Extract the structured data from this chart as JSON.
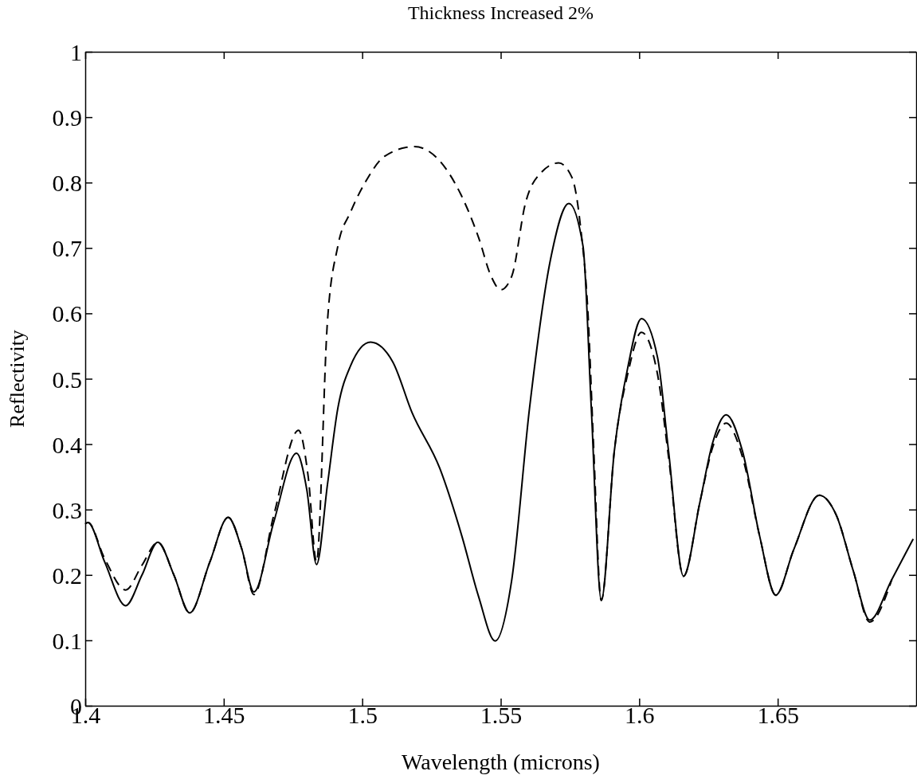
{
  "chart_data": {
    "type": "line",
    "title": "Thickness Increased 2%",
    "xlabel": "Wavelength (microns)",
    "ylabel": "Reflectivity",
    "xlim": [
      1.4,
      1.7
    ],
    "xticks": [
      1.4,
      1.45,
      1.5,
      1.55,
      1.6,
      1.65
    ],
    "ylim": [
      0,
      1
    ],
    "yticks": [
      0,
      0.1,
      0.2,
      0.3,
      0.4,
      0.5,
      0.6,
      0.7,
      0.8,
      0.9,
      1
    ],
    "marker": "none",
    "series": [
      {
        "color": "#000000",
        "line_style": "solid",
        "x": [
          1.4,
          1.401,
          1.407,
          1.4146,
          1.4205,
          1.4262,
          1.432,
          1.4377,
          1.445,
          1.4516,
          1.4565,
          1.4609,
          1.468,
          1.4763,
          1.48,
          1.4835,
          1.4875,
          1.4912,
          1.4958,
          1.503,
          1.511,
          1.518,
          1.528,
          1.536,
          1.542,
          1.548,
          1.554,
          1.5604,
          1.568,
          1.5746,
          1.5797,
          1.5827,
          1.5863,
          1.591,
          1.596,
          1.6008,
          1.6066,
          1.6106,
          1.616,
          1.6219,
          1.6265,
          1.6314,
          1.6373,
          1.6435,
          1.6493,
          1.6558,
          1.665,
          1.6712,
          1.6773,
          1.6832,
          1.6912,
          1.6989
        ],
        "values": [
          0.278,
          0.28,
          0.22,
          0.153,
          0.2,
          0.25,
          0.2,
          0.142,
          0.22,
          0.288,
          0.24,
          0.174,
          0.28,
          0.386,
          0.33,
          0.216,
          0.34,
          0.455,
          0.52,
          0.556,
          0.526,
          0.448,
          0.363,
          0.259,
          0.167,
          0.099,
          0.193,
          0.455,
          0.683,
          0.768,
          0.703,
          0.455,
          0.161,
          0.389,
          0.52,
          0.592,
          0.533,
          0.389,
          0.198,
          0.311,
          0.402,
          0.445,
          0.389,
          0.259,
          0.169,
          0.239,
          0.322,
          0.291,
          0.206,
          0.131,
          0.193,
          0.255
        ]
      },
      {
        "color": "#000000",
        "line_style": "dashed",
        "x": [
          1.4,
          1.401,
          1.407,
          1.4146,
          1.4205,
          1.4262,
          1.432,
          1.4377,
          1.445,
          1.4516,
          1.4565,
          1.4609,
          1.468,
          1.477,
          1.4805,
          1.4835,
          1.4874,
          1.4912,
          1.4958,
          1.502,
          1.508,
          1.5188,
          1.528,
          1.5357,
          1.542,
          1.5465,
          1.55,
          1.554,
          1.5589,
          1.565,
          1.5709,
          1.5758,
          1.5789,
          1.5815,
          1.5835,
          1.5863,
          1.591,
          1.596,
          1.6008,
          1.6066,
          1.6106,
          1.616,
          1.6219,
          1.6265,
          1.6314,
          1.6373,
          1.6435,
          1.6493,
          1.6558,
          1.665,
          1.6712,
          1.6773,
          1.6832,
          1.6912
        ],
        "values": [
          0.278,
          0.28,
          0.225,
          0.177,
          0.215,
          0.25,
          0.2,
          0.142,
          0.22,
          0.288,
          0.24,
          0.17,
          0.29,
          0.421,
          0.35,
          0.22,
          0.585,
          0.703,
          0.755,
          0.807,
          0.84,
          0.855,
          0.833,
          0.781,
          0.716,
          0.657,
          0.636,
          0.657,
          0.768,
          0.817,
          0.83,
          0.807,
          0.729,
          0.6,
          0.4,
          0.161,
          0.389,
          0.51,
          0.571,
          0.507,
          0.38,
          0.198,
          0.311,
          0.395,
          0.432,
          0.38,
          0.259,
          0.169,
          0.239,
          0.322,
          0.291,
          0.206,
          0.128,
          0.193
        ]
      }
    ]
  }
}
